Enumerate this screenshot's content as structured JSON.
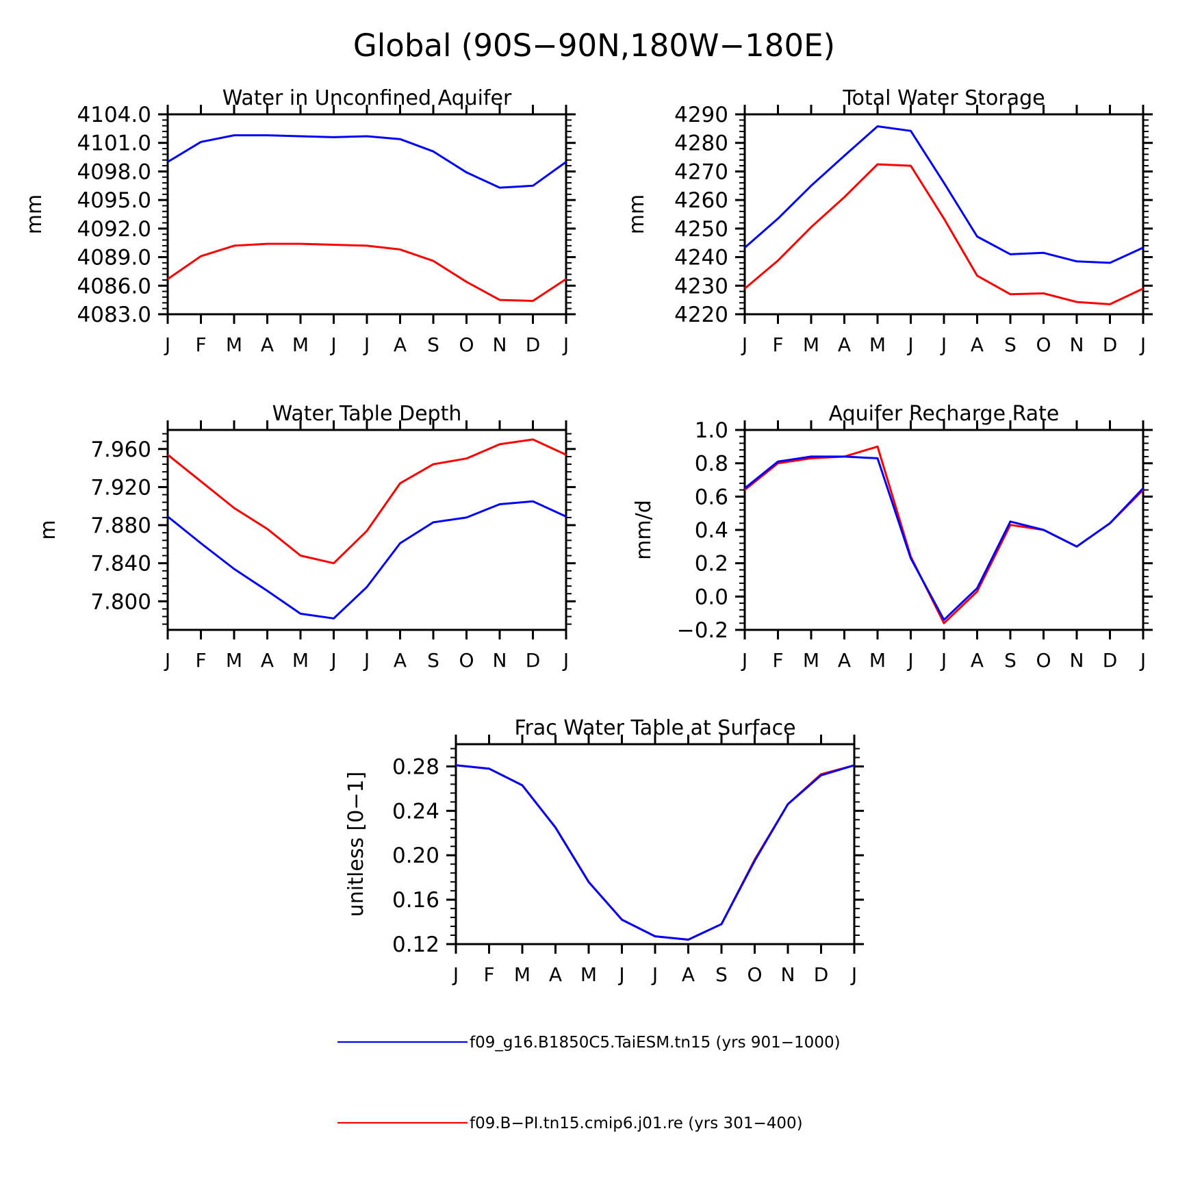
{
  "title": "Global (90S−90N,180W−180E)",
  "colors": {
    "series1": "#0000ff",
    "series2": "#ff0000",
    "axis": "#000000",
    "background": "#ffffff"
  },
  "legend": [
    {
      "label": "f09_g16.B1850C5.TaiESM.tn15 (yrs 901−1000)",
      "color": "#0000ff"
    },
    {
      "label": "f09.B−PI.tn15.cmip6.j01.re (yrs 301−400)",
      "color": "#ff0000"
    }
  ],
  "chart_data": [
    {
      "type": "line",
      "title": "Water in Unconfined Aquifer",
      "xlabel": "",
      "ylabel": "mm",
      "categories": [
        "J",
        "F",
        "M",
        "A",
        "M",
        "J",
        "J",
        "A",
        "S",
        "O",
        "N",
        "D",
        "J"
      ],
      "ylim": [
        4083.0,
        4104.0
      ],
      "yticks": [
        "4083.0",
        "4086.0",
        "4089.0",
        "4092.0",
        "4095.0",
        "4098.0",
        "4101.0",
        "4104.0"
      ],
      "series": [
        {
          "color": "#0000ff",
          "values": [
            4099.0,
            4101.1,
            4101.8,
            4101.8,
            4101.7,
            4101.6,
            4101.7,
            4101.4,
            4100.1,
            4097.9,
            4096.3,
            4096.5,
            4099.0
          ]
        },
        {
          "color": "#ff0000",
          "values": [
            4086.7,
            4089.1,
            4090.2,
            4090.4,
            4090.4,
            4090.3,
            4090.2,
            4089.8,
            4088.6,
            4086.4,
            4084.5,
            4084.4,
            4086.7
          ]
        }
      ],
      "grid": false
    },
    {
      "type": "line",
      "title": "Total Water Storage",
      "xlabel": "",
      "ylabel": "mm",
      "categories": [
        "J",
        "F",
        "M",
        "A",
        "M",
        "J",
        "J",
        "A",
        "S",
        "O",
        "N",
        "D",
        "J"
      ],
      "ylim": [
        4220,
        4290
      ],
      "yticks": [
        "4220",
        "4230",
        "4240",
        "4250",
        "4260",
        "4270",
        "4280",
        "4290"
      ],
      "series": [
        {
          "color": "#0000ff",
          "values": [
            4243.3,
            4253.5,
            4265.0,
            4275.5,
            4285.8,
            4284.2,
            4266.0,
            4247.2,
            4241.0,
            4241.5,
            4238.5,
            4238.0,
            4243.3
          ]
        },
        {
          "color": "#ff0000",
          "values": [
            4229.0,
            4238.8,
            4250.5,
            4261.0,
            4272.5,
            4272.0,
            4253.5,
            4233.5,
            4227.0,
            4227.3,
            4224.3,
            4223.5,
            4229.0
          ]
        }
      ],
      "grid": false
    },
    {
      "type": "line",
      "title": "Water Table Depth",
      "xlabel": "",
      "ylabel": "m",
      "categories": [
        "J",
        "F",
        "M",
        "A",
        "M",
        "J",
        "J",
        "A",
        "S",
        "O",
        "N",
        "D",
        "J"
      ],
      "ylim": [
        7.77,
        7.98
      ],
      "yticks": [
        "7.800",
        "7.840",
        "7.880",
        "7.920",
        "7.960"
      ],
      "series": [
        {
          "color": "#0000ff",
          "values": [
            7.889,
            7.861,
            7.834,
            7.811,
            7.787,
            7.782,
            7.815,
            7.861,
            7.883,
            7.888,
            7.902,
            7.905,
            7.889
          ]
        },
        {
          "color": "#ff0000",
          "values": [
            7.954,
            7.926,
            7.898,
            7.876,
            7.848,
            7.84,
            7.874,
            7.924,
            7.944,
            7.95,
            7.965,
            7.97,
            7.954
          ]
        }
      ],
      "grid": false
    },
    {
      "type": "line",
      "title": "Aquifer Recharge Rate",
      "xlabel": "",
      "ylabel": "mm/d",
      "categories": [
        "J",
        "F",
        "M",
        "A",
        "M",
        "J",
        "J",
        "A",
        "S",
        "O",
        "N",
        "D",
        "J"
      ],
      "ylim": [
        -0.2,
        1.0
      ],
      "yticks": [
        "−0.2",
        "0.0",
        "0.2",
        "0.4",
        "0.6",
        "0.8",
        "1.0"
      ],
      "series": [
        {
          "color": "#ff0000",
          "values": [
            0.64,
            0.8,
            0.83,
            0.84,
            0.9,
            0.24,
            -0.16,
            0.03,
            0.43,
            0.4,
            0.3,
            0.44,
            0.64
          ]
        },
        {
          "color": "#0000ff",
          "values": [
            0.65,
            0.81,
            0.84,
            0.84,
            0.83,
            0.23,
            -0.14,
            0.05,
            0.45,
            0.4,
            0.3,
            0.44,
            0.65
          ]
        }
      ],
      "grid": false
    },
    {
      "type": "line",
      "title": "Frac Water Table at Surface",
      "xlabel": "",
      "ylabel": "unitless [0−1]",
      "categories": [
        "J",
        "F",
        "M",
        "A",
        "M",
        "J",
        "J",
        "A",
        "S",
        "O",
        "N",
        "D",
        "J"
      ],
      "ylim": [
        0.12,
        0.3
      ],
      "yticks": [
        "0.12",
        "0.16",
        "0.20",
        "0.24",
        "0.28"
      ],
      "series": [
        {
          "color": "#ff0000",
          "values": [
            0.281,
            0.278,
            0.263,
            0.225,
            0.176,
            0.142,
            0.127,
            0.124,
            0.138,
            0.196,
            0.246,
            0.273,
            0.281
          ]
        },
        {
          "color": "#0000ff",
          "values": [
            0.281,
            0.278,
            0.263,
            0.225,
            0.176,
            0.142,
            0.127,
            0.124,
            0.138,
            0.195,
            0.246,
            0.272,
            0.281
          ]
        }
      ],
      "grid": false
    }
  ]
}
